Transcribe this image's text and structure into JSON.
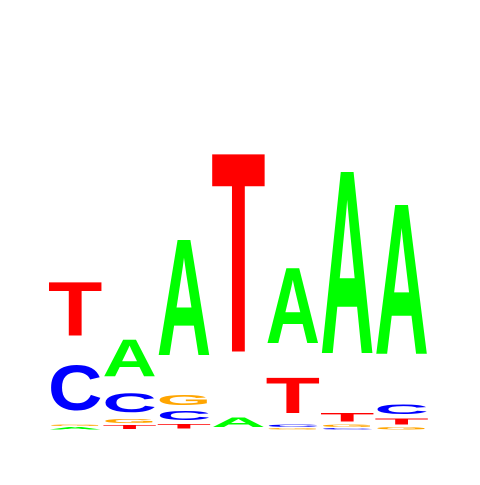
{
  "logo": {
    "type": "sequence-logo",
    "alphabet": [
      "A",
      "C",
      "G",
      "T"
    ],
    "colors": {
      "A": "#00ff00",
      "C": "#0000ff",
      "G": "#ffa500",
      "T": "#ff0000"
    },
    "positions": [
      {
        "index": 1,
        "letters": [
          {
            "base": "A",
            "height": 0.03
          },
          {
            "base": "G",
            "height": 0.02
          },
          {
            "base": "C",
            "height": 0.6
          },
          {
            "base": "T",
            "height": 0.72
          }
        ]
      },
      {
        "index": 2,
        "letters": [
          {
            "base": "T",
            "height": 0.05
          },
          {
            "base": "G",
            "height": 0.05
          },
          {
            "base": "C",
            "height": 0.25
          },
          {
            "base": "A",
            "height": 0.5
          }
        ]
      },
      {
        "index": 3,
        "letters": [
          {
            "base": "T",
            "height": 0.06
          },
          {
            "base": "C",
            "height": 0.12
          },
          {
            "base": "G",
            "height": 0.14
          },
          {
            "base": "A",
            "height": 1.57
          }
        ]
      },
      {
        "index": 4,
        "letters": [
          {
            "base": "A",
            "height": 0.13
          },
          {
            "base": "T",
            "height": 2.69
          }
        ]
      },
      {
        "index": 5,
        "letters": [
          {
            "base": "G",
            "height": 0.02
          },
          {
            "base": "C",
            "height": 0.03
          },
          {
            "base": "T",
            "height": 0.48
          },
          {
            "base": "A",
            "height": 1.02
          }
        ]
      },
      {
        "index": 6,
        "letters": [
          {
            "base": "C",
            "height": 0.02
          },
          {
            "base": "G",
            "height": 0.03
          },
          {
            "base": "T",
            "height": 0.11
          },
          {
            "base": "A",
            "height": 2.47
          }
        ]
      },
      {
        "index": 7,
        "letters": [
          {
            "base": "G",
            "height": 0.03
          },
          {
            "base": "T",
            "height": 0.08
          },
          {
            "base": "C",
            "height": 0.13
          },
          {
            "base": "A",
            "height": 2.03
          }
        ]
      }
    ]
  }
}
